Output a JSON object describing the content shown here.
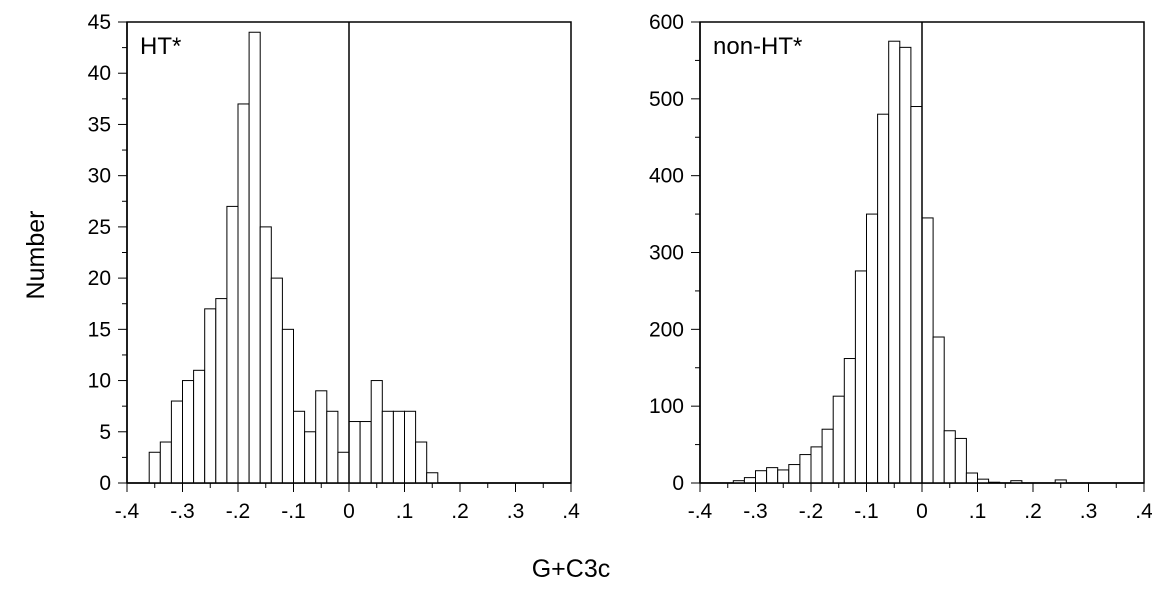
{
  "figure": {
    "xlabel": "G+C3c",
    "ylabel": "Number"
  },
  "chart_data": [
    {
      "type": "bar",
      "title": "HT*",
      "xlim": [
        -0.4,
        0.4
      ],
      "ylim": [
        0,
        45
      ],
      "bin_width": 0.02,
      "reference_line_x": 0,
      "x_ticks": [
        "-.4",
        "-.3",
        "-.2",
        "-.1",
        "0",
        ".1",
        ".2",
        ".3",
        ".4"
      ],
      "x_tick_values": [
        -0.4,
        -0.3,
        -0.2,
        -0.1,
        0,
        0.1,
        0.2,
        0.3,
        0.4
      ],
      "y_ticks": [
        "0",
        "5",
        "10",
        "15",
        "20",
        "25",
        "30",
        "35",
        "40",
        "45"
      ],
      "y_tick_values": [
        0,
        5,
        10,
        15,
        20,
        25,
        30,
        35,
        40,
        45
      ],
      "bins_start": [
        -0.36,
        -0.34,
        -0.32,
        -0.3,
        -0.28,
        -0.26,
        -0.24,
        -0.22,
        -0.2,
        -0.18,
        -0.16,
        -0.14,
        -0.12,
        -0.1,
        -0.08,
        -0.06,
        -0.04,
        -0.02,
        0.0,
        0.02,
        0.04,
        0.06,
        0.08,
        0.1,
        0.12,
        0.14,
        0.16,
        0.18,
        0.2,
        0.22
      ],
      "values": [
        3,
        4,
        8,
        10,
        11,
        17,
        18,
        27,
        37,
        44,
        25,
        20,
        15,
        7,
        5,
        9,
        7,
        3,
        6,
        6,
        10,
        7,
        7,
        7,
        4,
        1,
        0,
        0,
        0,
        0
      ]
    },
    {
      "type": "bar",
      "title": "non-HT*",
      "xlim": [
        -0.4,
        0.4
      ],
      "ylim": [
        0,
        600
      ],
      "bin_width": 0.02,
      "reference_line_x": 0,
      "x_ticks": [
        "-.4",
        "-.3",
        "-.2",
        "-.1",
        "0",
        ".1",
        ".2",
        ".3",
        ".4"
      ],
      "x_tick_values": [
        -0.4,
        -0.3,
        -0.2,
        -0.1,
        0,
        0.1,
        0.2,
        0.3,
        0.4
      ],
      "y_ticks": [
        "0",
        "100",
        "200",
        "300",
        "400",
        "500",
        "600"
      ],
      "y_tick_values": [
        0,
        100,
        200,
        300,
        400,
        500,
        600
      ],
      "bins_start": [
        -0.34,
        -0.32,
        -0.3,
        -0.28,
        -0.26,
        -0.24,
        -0.22,
        -0.2,
        -0.18,
        -0.16,
        -0.14,
        -0.12,
        -0.1,
        -0.08,
        -0.06,
        -0.04,
        -0.02,
        0.0,
        0.02,
        0.04,
        0.06,
        0.08,
        0.1,
        0.12,
        0.14,
        0.16,
        0.18,
        0.2,
        0.22,
        0.24,
        0.26,
        0.28,
        0.3,
        0.32
      ],
      "values": [
        3,
        7,
        16,
        20,
        17,
        24,
        37,
        47,
        70,
        113,
        162,
        276,
        350,
        480,
        575,
        567,
        490,
        345,
        190,
        68,
        58,
        13,
        5,
        1,
        0,
        3,
        0,
        0,
        0,
        4,
        0,
        0,
        0,
        0
      ]
    }
  ]
}
